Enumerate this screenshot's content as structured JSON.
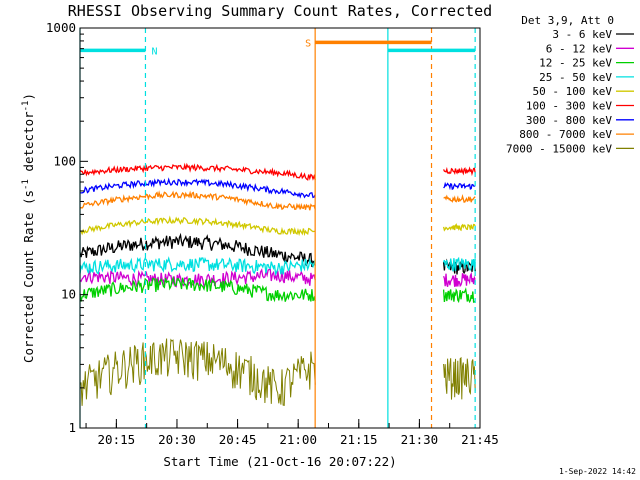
{
  "chart_data": {
    "type": "line",
    "title": "RHESSI Observing Summary Count Rates, Corrected",
    "xlabel": "Start Time (21-Oct-16 20:07:22)",
    "ylabel_main": "Corrected Count Rate (s",
    "ylabel_exp1": "-1",
    "ylabel_mid": " detector",
    "ylabel_exp2": "-1",
    "ylabel_end": ")",
    "ylog": true,
    "ylim": [
      1,
      1000
    ],
    "xlim_minutes": [
      20.1,
      21.75
    ],
    "xticks": [
      {
        "label": "20:15",
        "t": 20.25
      },
      {
        "label": "20:30",
        "t": 20.5
      },
      {
        "label": "20:45",
        "t": 20.75
      },
      {
        "label": "21:00",
        "t": 21.0
      },
      {
        "label": "21:15",
        "t": 21.25
      },
      {
        "label": "21:30",
        "t": 21.5
      },
      {
        "label": "21:45",
        "t": 21.75
      }
    ],
    "yticks": [
      {
        "label": "1",
        "v": 1
      },
      {
        "label": "10",
        "v": 10
      },
      {
        "label": "100",
        "v": 100
      },
      {
        "label": "1000",
        "v": 1000
      }
    ],
    "legend_title": "Det 3,9, Att 0",
    "legend_position": "right",
    "series": [
      {
        "name": "3 - 6 keV",
        "color": "#000000",
        "start": 20,
        "peak": 25,
        "end": 18,
        "after": 16
      },
      {
        "name": "6 - 12 keV",
        "color": "#d000d0",
        "start": 14,
        "peak": 13,
        "end": 13,
        "after": 13
      },
      {
        "name": "12 - 25 keV",
        "color": "#00d000",
        "start": 10,
        "peak": 12,
        "end": 10,
        "after": 10
      },
      {
        "name": "25 - 50 keV",
        "color": "#00e0e0",
        "start": 16,
        "peak": 17,
        "end": 17,
        "after": 17
      },
      {
        "name": "50 - 100 keV",
        "color": "#d0c800",
        "start": 30,
        "peak": 36,
        "end": 30,
        "after": 32
      },
      {
        "name": "100 - 300 keV",
        "color": "#ff0000",
        "start": 82,
        "peak": 90,
        "end": 75,
        "after": 85
      },
      {
        "name": "300 - 800 keV",
        "color": "#0000ff",
        "start": 60,
        "peak": 70,
        "end": 55,
        "after": 65
      },
      {
        "name": "800 - 7000 keV",
        "color": "#ff8000",
        "start": 46,
        "peak": 56,
        "end": 45,
        "after": 52
      },
      {
        "name": "7000 - 15000 keV",
        "color": "#808000",
        "start": 2,
        "peak": 3.5,
        "end": 3,
        "after": 2.5
      }
    ],
    "observing_bars": [
      {
        "label": "N",
        "color": "#00e0e0",
        "from": 20.1,
        "to": 20.37,
        "level": 680
      },
      {
        "label": "S",
        "color": "#ff8000",
        "from": 21.07,
        "to": 21.55,
        "level": 780
      },
      {
        "label": "",
        "color": "#00e0e0",
        "from": 21.37,
        "to": 21.73,
        "level": 680
      }
    ],
    "interval_lines": [
      {
        "t": 20.1,
        "color": "#00e0e0",
        "dashed": false
      },
      {
        "t": 20.37,
        "color": "#00e0e0",
        "dashed": true
      },
      {
        "t": 21.07,
        "color": "#ff8000",
        "dashed": false
      },
      {
        "t": 21.37,
        "color": "#00e0e0",
        "dashed": false
      },
      {
        "t": 21.55,
        "color": "#ff8000",
        "dashed": true
      },
      {
        "t": 21.73,
        "color": "#00e0e0",
        "dashed": true
      }
    ],
    "gap": {
      "from": 21.07,
      "to": 21.6
    },
    "timestamp": "1-Sep-2022 14:42"
  }
}
